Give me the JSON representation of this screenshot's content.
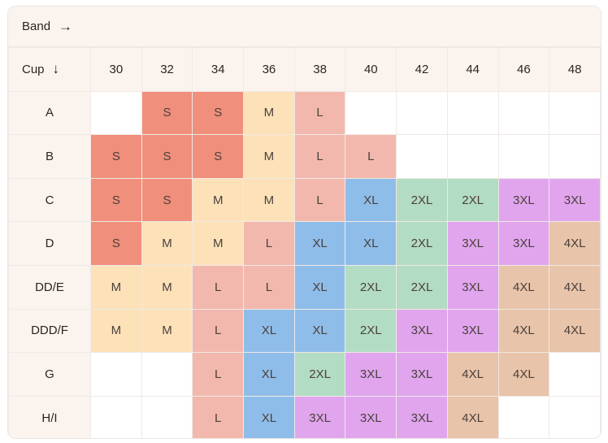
{
  "band_label": "Band",
  "band_arrow": "→",
  "cup_label": "Cup",
  "cup_arrow": "↓",
  "bands": [
    "30",
    "32",
    "34",
    "36",
    "38",
    "40",
    "42",
    "44",
    "46",
    "48"
  ],
  "cups": [
    "A",
    "B",
    "C",
    "D",
    "DD/E",
    "DDD/F",
    "G",
    "H/I"
  ],
  "sizes": [
    [
      "",
      "S",
      "S",
      "M",
      "L",
      "",
      "",
      "",
      "",
      ""
    ],
    [
      "S",
      "S",
      "S",
      "M",
      "L",
      "L",
      "",
      "",
      "",
      ""
    ],
    [
      "S",
      "S",
      "M",
      "M",
      "L",
      "XL",
      "2XL",
      "2XL",
      "3XL",
      "3XL"
    ],
    [
      "S",
      "M",
      "M",
      "L",
      "XL",
      "XL",
      "2XL",
      "3XL",
      "3XL",
      "4XL"
    ],
    [
      "M",
      "M",
      "L",
      "L",
      "XL",
      "2XL",
      "2XL",
      "3XL",
      "4XL",
      "4XL"
    ],
    [
      "M",
      "M",
      "L",
      "XL",
      "XL",
      "2XL",
      "3XL",
      "3XL",
      "4XL",
      "4XL"
    ],
    [
      "",
      "",
      "L",
      "XL",
      "2XL",
      "3XL",
      "3XL",
      "4XL",
      "4XL",
      ""
    ],
    [
      "",
      "",
      "L",
      "XL",
      "3XL",
      "3XL",
      "3XL",
      "4XL",
      "",
      ""
    ]
  ],
  "size_colors": {
    "S": "#f08f7b",
    "M": "#fde2b9",
    "L": "#f3b8ad",
    "XL": "#8fbdea",
    "2XL": "#b3dcc4",
    "3XL": "#e1a5ee",
    "4XL": "#e8c4aa"
  }
}
